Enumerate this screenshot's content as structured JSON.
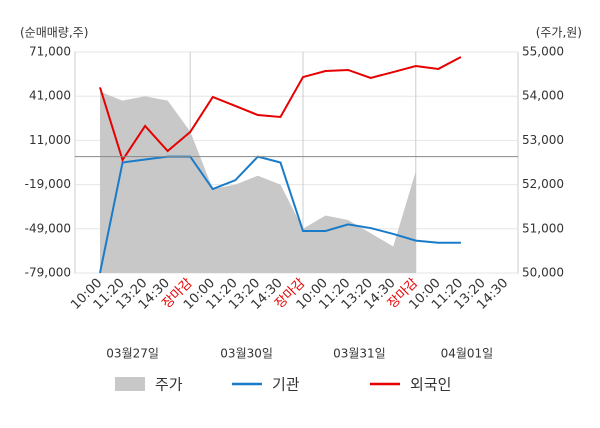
{
  "chart_data": {
    "type": "line",
    "y_label": "(순매매량,주)",
    "y2_label": "(주가,원)",
    "categories": [
      "10:00",
      "11:20",
      "13:20",
      "14:30",
      "장마감",
      "10:00",
      "11:20",
      "13:20",
      "14:30",
      "장마감",
      "10:00",
      "11:20",
      "13:20",
      "14:30",
      "장마감",
      "10:00",
      "11:20",
      "13:20",
      "14:30"
    ],
    "day_breaks": [
      4,
      9,
      14
    ],
    "break_label_color": "#e60000",
    "date_labels": [
      "03월27일",
      "03월30일",
      "03월31일",
      "04월01일"
    ],
    "ylim": [
      -79000,
      71000
    ],
    "yticks": [
      {
        "value": 71000,
        "label": "71,000"
      },
      {
        "value": 41000,
        "label": "41,000"
      },
      {
        "value": 11000,
        "label": "11,000"
      },
      {
        "value": -19000,
        "label": "-19,000"
      },
      {
        "value": -49000,
        "label": "-49,000"
      },
      {
        "value": -79000,
        "label": "-79,000"
      }
    ],
    "y2lim": [
      50000,
      55000
    ],
    "y2ticks": [
      {
        "value": 55000,
        "label": "55,000"
      },
      {
        "value": 54000,
        "label": "54,000"
      },
      {
        "value": 53000,
        "label": "53,000"
      },
      {
        "value": 52000,
        "label": "52,000"
      },
      {
        "value": 51000,
        "label": "51,000"
      },
      {
        "value": 50000,
        "label": "50,000"
      }
    ],
    "grid": true,
    "series": [
      {
        "name": "주가",
        "type": "area",
        "axis": "y2",
        "color": "#c8c8c8",
        "values": [
          54100,
          53900,
          54000,
          53900,
          53200,
          51900,
          52000,
          52200,
          52000,
          51000,
          51300,
          51200,
          50900,
          50600,
          52300,
          null,
          null,
          null,
          null
        ]
      },
      {
        "name": "기관",
        "type": "line",
        "color": "#1a7cc8",
        "values": [
          -79000,
          -4000,
          -2000,
          0,
          0,
          -22000,
          -16000,
          0,
          -4000,
          -50500,
          -50500,
          -46000,
          -48500,
          -52500,
          -57000,
          -58500,
          -58500,
          null,
          null
        ]
      },
      {
        "name": "외국인",
        "type": "line",
        "color": "#e60000",
        "values": [
          47000,
          -2300,
          20800,
          3800,
          16700,
          40500,
          34400,
          28200,
          26900,
          54000,
          58100,
          58800,
          53400,
          57400,
          61500,
          59500,
          67600,
          null,
          null
        ]
      }
    ]
  }
}
